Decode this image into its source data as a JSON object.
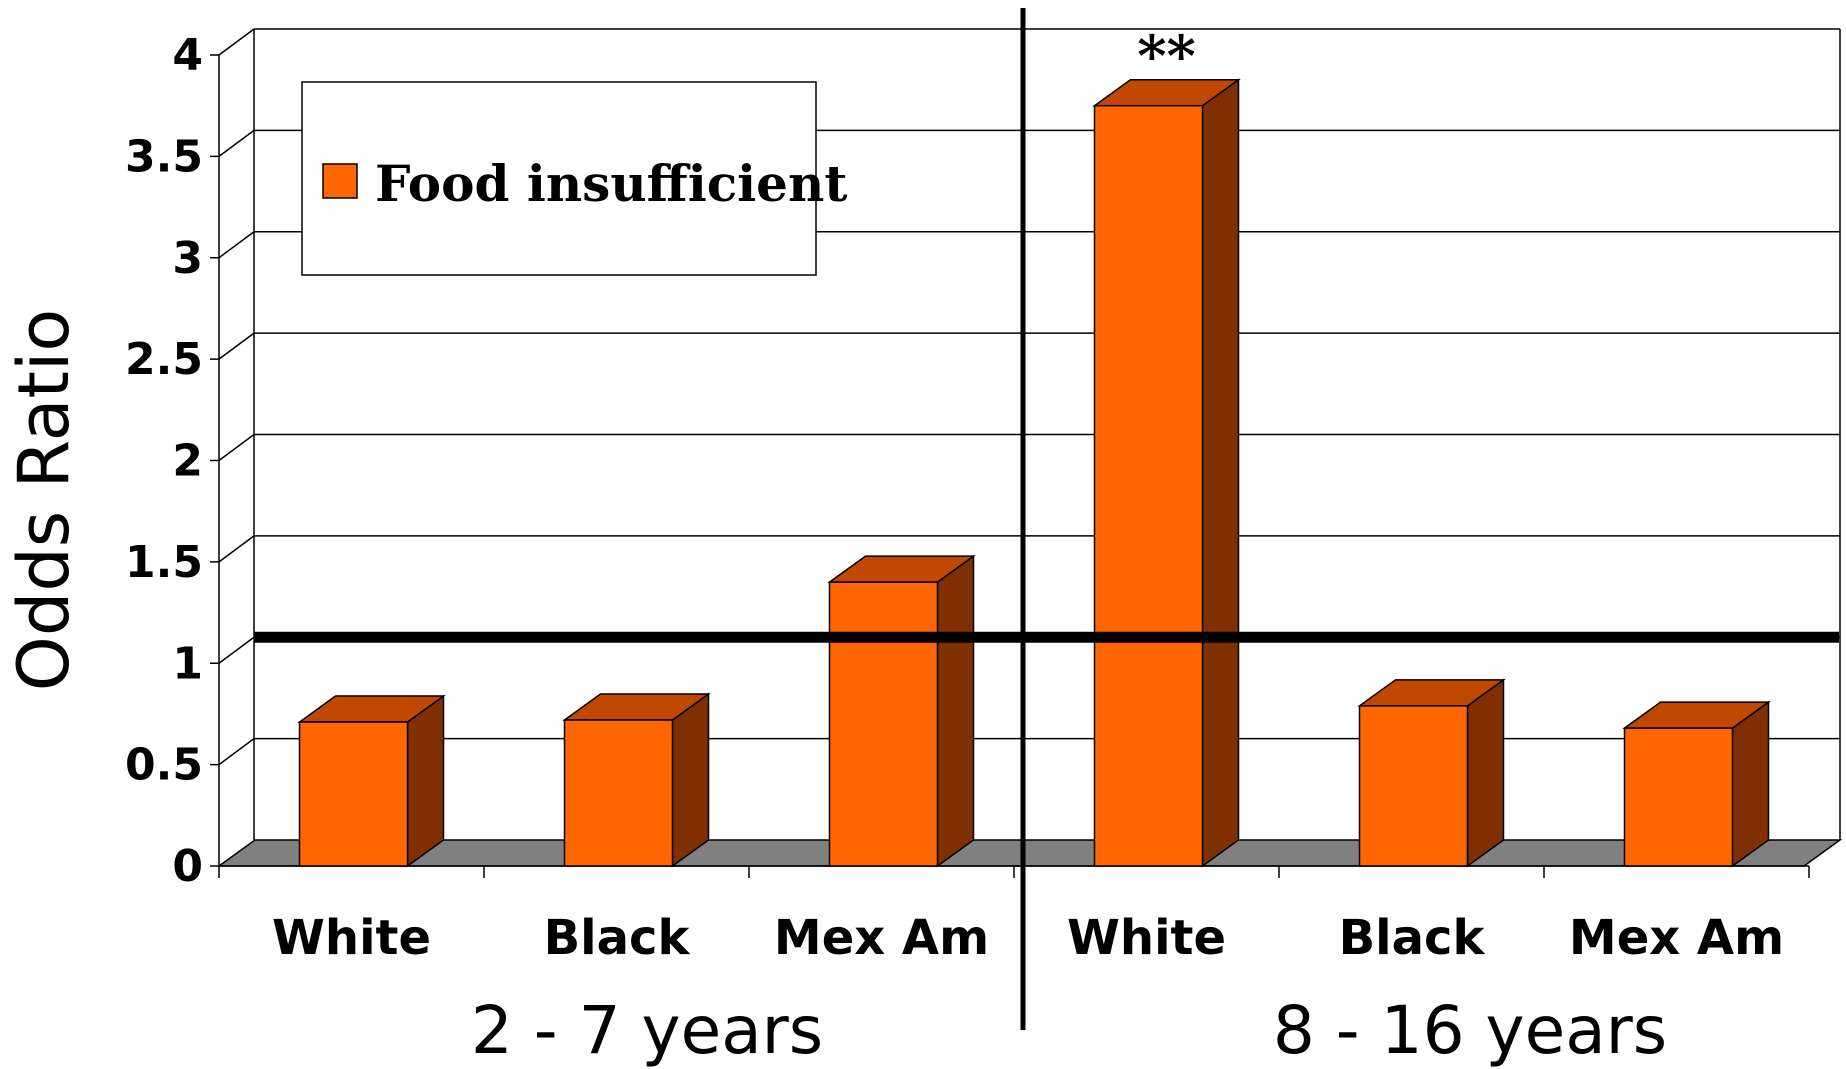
{
  "chart_data": {
    "type": "bar",
    "ylabel": "Odds Ratio",
    "ylim": [
      0,
      4
    ],
    "yticks": [
      "0",
      "0.5",
      "1",
      "1.5",
      "2",
      "2.5",
      "3",
      "3.5",
      "4"
    ],
    "grid": true,
    "legend": {
      "position": "top-left",
      "entries": [
        "Food insufficient"
      ]
    },
    "reference_line": 1,
    "groups": [
      {
        "label": "2 - 7 years",
        "categories": [
          "White",
          "Black",
          "Mex Am"
        ]
      },
      {
        "label": "8 - 16 years",
        "categories": [
          "White",
          "Black",
          "Mex Am"
        ]
      }
    ],
    "categories": [
      "White",
      "Black",
      "Mex Am",
      "White",
      "Black",
      "Mex Am"
    ],
    "series": [
      {
        "name": "Food insufficient",
        "values": [
          0.71,
          0.72,
          1.4,
          3.75,
          0.79,
          0.68
        ]
      }
    ],
    "annotations": [
      {
        "category_index": 3,
        "text": "**"
      }
    ],
    "colors": {
      "bar_front": "#FF6600",
      "bar_top": "#C04800",
      "bar_side": "#803000",
      "floor": "#808080"
    }
  }
}
